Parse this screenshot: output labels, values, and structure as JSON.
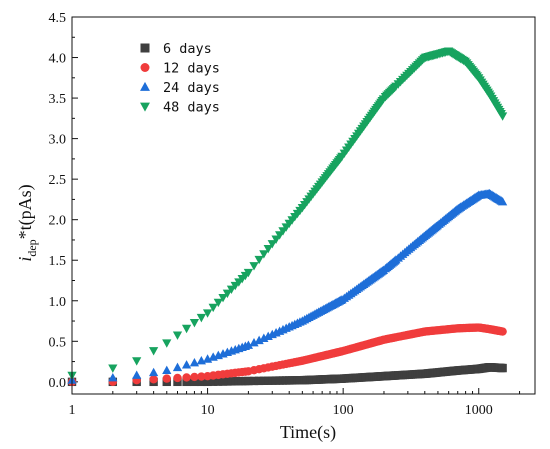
{
  "chart_data": {
    "type": "scatter",
    "xscale": "log",
    "xlim": [
      1,
      2600
    ],
    "ylim": [
      -0.15,
      4.5
    ],
    "xticks": [
      1,
      10,
      100,
      1000
    ],
    "xtick_labels": [
      "1",
      "10",
      "100",
      "1000"
    ],
    "yticks": [
      0.0,
      0.5,
      1.0,
      1.5,
      2.0,
      2.5,
      3.0,
      3.5,
      4.0,
      4.5
    ],
    "ytick_labels": [
      "0.0",
      "0.5",
      "1.0",
      "1.5",
      "2.0",
      "2.5",
      "3.0",
      "3.5",
      "4.0",
      "4.5"
    ],
    "xlabel": "Time(s)",
    "ylabel": {
      "pre": "i",
      "sub": "dep",
      "post": "*t(pAs)"
    },
    "legend_position": "top-left",
    "grid": false,
    "series": [
      {
        "name": "6  days",
        "marker": "square",
        "color": "#3f3f3f",
        "x": [
          1,
          2,
          3,
          5,
          10,
          20,
          50,
          100,
          200,
          400,
          700,
          1000,
          1200,
          1500
        ],
        "y": [
          0.0,
          0.0,
          0.0,
          0.0,
          0.0,
          0.01,
          0.02,
          0.04,
          0.07,
          0.1,
          0.14,
          0.16,
          0.18,
          0.17
        ]
      },
      {
        "name": "12  days",
        "marker": "circle",
        "color": "#f03c3c",
        "x": [
          1,
          2,
          3,
          5,
          10,
          20,
          50,
          100,
          200,
          400,
          700,
          1000,
          1200,
          1500
        ],
        "y": [
          0.0,
          0.0,
          0.02,
          0.04,
          0.07,
          0.13,
          0.26,
          0.38,
          0.52,
          0.62,
          0.66,
          0.67,
          0.65,
          0.62
        ]
      },
      {
        "name": "24  days",
        "marker": "triangle-up",
        "color": "#1e6ed8",
        "x": [
          1,
          2,
          3,
          5,
          10,
          20,
          50,
          100,
          200,
          400,
          700,
          1000,
          1200,
          1500
        ],
        "y": [
          0.02,
          0.05,
          0.08,
          0.14,
          0.28,
          0.45,
          0.75,
          1.02,
          1.38,
          1.8,
          2.13,
          2.3,
          2.32,
          2.22
        ]
      },
      {
        "name": "48  days",
        "marker": "triangle-down",
        "color": "#17a35f",
        "x": [
          1,
          2,
          3,
          5,
          10,
          20,
          50,
          100,
          200,
          400,
          600,
          800,
          1000,
          1200,
          1500
        ],
        "y": [
          0.08,
          0.17,
          0.26,
          0.48,
          0.85,
          1.35,
          2.15,
          2.8,
          3.5,
          4.0,
          4.08,
          3.95,
          3.75,
          3.55,
          3.28
        ]
      }
    ]
  }
}
